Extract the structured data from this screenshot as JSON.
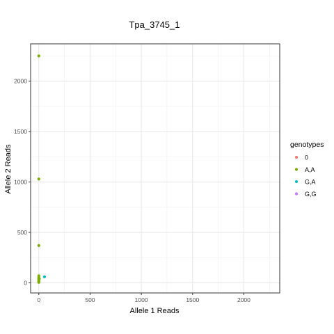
{
  "chart_data": {
    "type": "scatter",
    "title": "Tpa_3745_1",
    "xlabel": "Allele 1 Reads",
    "ylabel": "Allele 2 Reads",
    "xlim": [
      -80,
      2350
    ],
    "ylim": [
      -100,
      2370
    ],
    "x_ticks": [
      0,
      500,
      1000,
      1500,
      2000
    ],
    "y_ticks": [
      0,
      500,
      1000,
      1500,
      2000
    ],
    "x_minor": [
      250,
      750,
      1250,
      1750,
      2250
    ],
    "y_minor": [
      250,
      750,
      1250,
      1750,
      2250
    ],
    "grid": true,
    "legend": {
      "title": "genotypes",
      "position": "right",
      "entries": [
        {
          "name": "0",
          "color": "#F8766D"
        },
        {
          "name": "A,A",
          "color": "#7CAE00"
        },
        {
          "name": "G,A",
          "color": "#00BFC4"
        },
        {
          "name": "G,G",
          "color": "#C77CFF"
        }
      ]
    },
    "series": [
      {
        "name": "A,A",
        "color": "#7CAE00",
        "points": [
          [
            0,
            2250
          ],
          [
            0,
            1030
          ],
          [
            0,
            370
          ],
          [
            0,
            70
          ],
          [
            0,
            55
          ],
          [
            0,
            45
          ],
          [
            0,
            35
          ],
          [
            0,
            25
          ],
          [
            0,
            15
          ],
          [
            0,
            5
          ],
          [
            5,
            40
          ]
        ]
      },
      {
        "name": "G,A",
        "color": "#00BFC4",
        "points": [
          [
            55,
            60
          ]
        ]
      }
    ]
  }
}
